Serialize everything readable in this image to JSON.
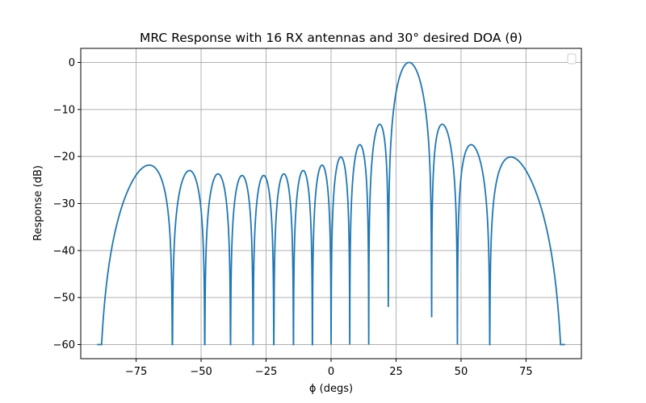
{
  "chart_data": {
    "type": "line",
    "title": "MRC Response with 16 RX antennas and 30° desired DOA (θ)",
    "xlabel": "ϕ (degs)",
    "ylabel": "Response (dB)",
    "xlim": [
      -96.3,
      96.3
    ],
    "ylim": [
      -63,
      3
    ],
    "xticks": [
      -75,
      -50,
      -25,
      0,
      25,
      50,
      75
    ],
    "yticks": [
      0,
      -10,
      -20,
      -30,
      -40,
      -50,
      -60
    ],
    "xtick_labels": [
      "−75",
      "−50",
      "−25",
      "0",
      "25",
      "50",
      "75"
    ],
    "ytick_labels": [
      "0",
      "−10",
      "−20",
      "−30",
      "−40",
      "−50",
      "−60"
    ],
    "grid": true,
    "legend": "top-right (empty)",
    "series": [
      {
        "color": "#1f77b4",
        "n_antennas": 16,
        "desired_doa_deg": 30,
        "floor_db": -60,
        "x_range": [
          -90,
          90
        ]
      }
    ]
  },
  "colors": {
    "line": "#1f77b4",
    "grid": "#b0b0b0",
    "axes": "#000000",
    "background": "#ffffff"
  }
}
